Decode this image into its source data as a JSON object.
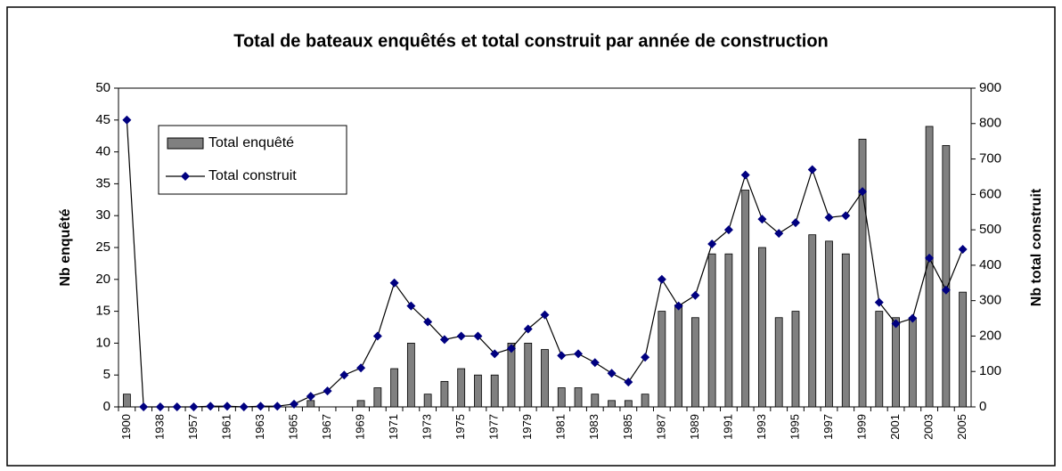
{
  "chart_data": {
    "type": "bar_line",
    "title": "Total de bateaux enquêtés et total construit par année de construction",
    "ylabel": "Nb enquêté",
    "y2label": "Nb total construit",
    "categories": [
      "1900",
      null,
      "1938",
      null,
      "1957",
      null,
      "1961",
      null,
      "1963",
      null,
      "1965",
      null,
      "1967",
      null,
      "1969",
      null,
      "1971",
      null,
      "1973",
      null,
      "1975",
      null,
      "1977",
      null,
      "1979",
      null,
      "1981",
      null,
      "1983",
      null,
      "1985",
      null,
      "1987",
      null,
      "1989",
      null,
      "1991",
      null,
      "1993",
      null,
      "1995",
      null,
      "1997",
      null,
      "1999",
      null,
      "2001",
      null,
      "2003",
      null,
      "2005"
    ],
    "series": [
      {
        "name": "Total enquêté",
        "type": "bar",
        "color": "#808080",
        "values": [
          2,
          0,
          0,
          0,
          0,
          0,
          0,
          0,
          0,
          0,
          0,
          1,
          0,
          0,
          1,
          3,
          6,
          10,
          2,
          4,
          6,
          5,
          5,
          10,
          10,
          9,
          3,
          3,
          2,
          1,
          1,
          2,
          15,
          16,
          14,
          24,
          24,
          34,
          25,
          14,
          15,
          27,
          26,
          24,
          42,
          15,
          14,
          14,
          44,
          41,
          18
        ]
      },
      {
        "name": "Total construit",
        "type": "line",
        "axis": "y2",
        "color": "#000080",
        "values": [
          810,
          0,
          0,
          0,
          0,
          2,
          2,
          0,
          2,
          2,
          8,
          30,
          45,
          90,
          110,
          200,
          350,
          285,
          240,
          190,
          200,
          200,
          150,
          165,
          220,
          260,
          145,
          150,
          125,
          95,
          70,
          140,
          360,
          285,
          315,
          460,
          500,
          655,
          530,
          490,
          520,
          670,
          535,
          540,
          608,
          295,
          235,
          250,
          420,
          330,
          445
        ]
      }
    ],
    "ylim": [
      0,
      50
    ],
    "yticks": [
      0,
      5,
      10,
      15,
      20,
      25,
      30,
      35,
      40,
      45,
      50
    ],
    "y2lim": [
      0,
      900
    ],
    "y2ticks": [
      0,
      100,
      200,
      300,
      400,
      500,
      600,
      700,
      800,
      900
    ],
    "legend": "upper left"
  }
}
